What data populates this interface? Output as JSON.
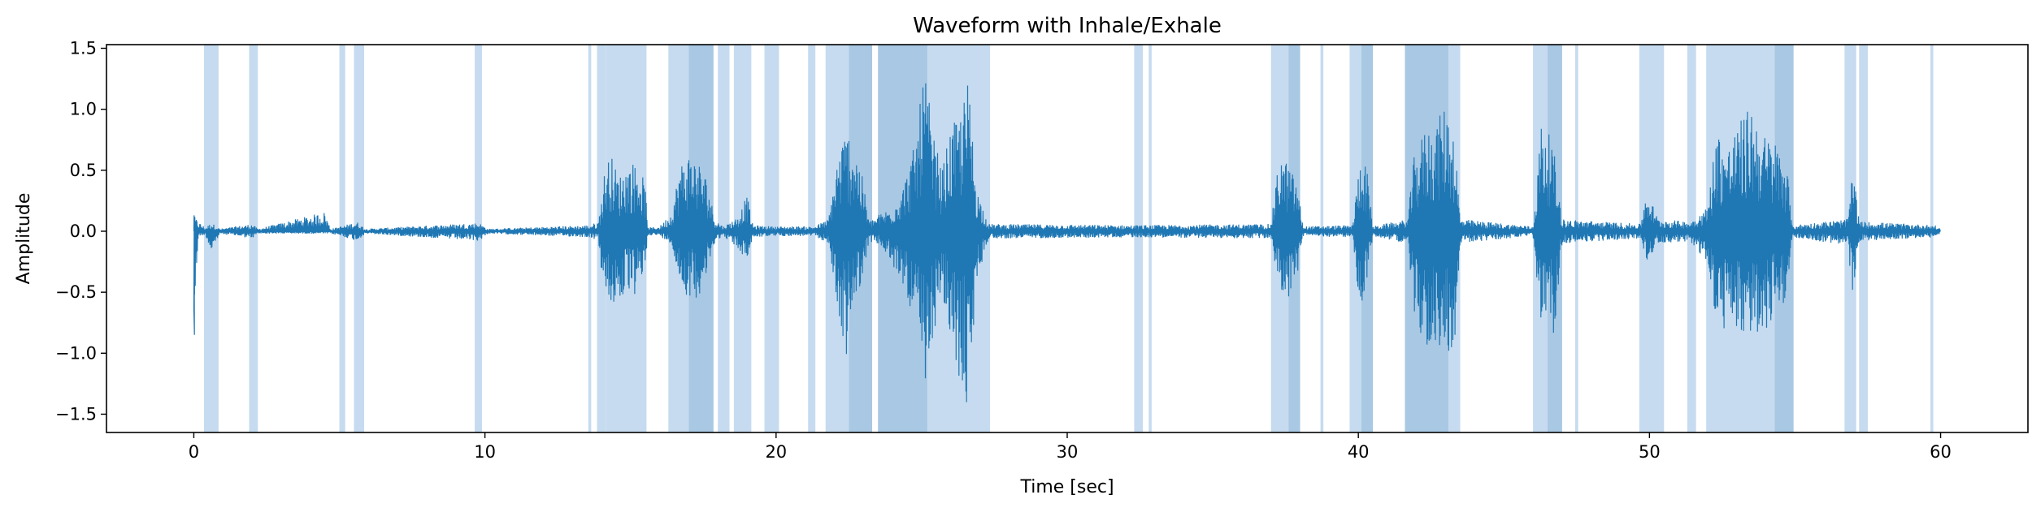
{
  "chart_data": {
    "type": "line",
    "title": "Waveform with Inhale/Exhale",
    "xlabel": "Time [sec]",
    "ylabel": "Amplitude",
    "xlim": [
      -3,
      63
    ],
    "ylim": [
      -1.65,
      1.53
    ],
    "x_ticks": [
      0,
      10,
      20,
      30,
      40,
      50,
      60
    ],
    "y_ticks": [
      -1.5,
      -1.0,
      -0.5,
      0.0,
      0.5,
      1.0,
      1.5
    ],
    "x_tick_labels": [
      "0",
      "10",
      "20",
      "30",
      "40",
      "50",
      "60"
    ],
    "y_tick_labels": [
      "−1.5",
      "−1.0",
      "−0.5",
      "0.0",
      "0.5",
      "1.0",
      "1.5"
    ],
    "grid": false,
    "colors": {
      "waveform": "#1f77b4",
      "span_light": "#c6dbef",
      "span_dark": "#a9c8e3"
    },
    "series": [
      {
        "envelope_points": [
          [
            0.0,
            0.13,
            -0.85
          ],
          [
            0.15,
            0.08,
            -0.04
          ],
          [
            0.4,
            0.03,
            -0.03
          ],
          [
            0.6,
            0.07,
            -0.18
          ],
          [
            0.9,
            0.02,
            -0.02
          ],
          [
            2.0,
            0.06,
            -0.06
          ],
          [
            2.2,
            0.02,
            -0.02
          ],
          [
            4.5,
            0.16,
            -0.02
          ],
          [
            4.7,
            0.02,
            -0.02
          ],
          [
            5.2,
            0.05,
            -0.05
          ],
          [
            5.6,
            0.08,
            -0.08
          ],
          [
            5.9,
            0.02,
            -0.02
          ],
          [
            9.8,
            0.07,
            -0.08
          ],
          [
            10.1,
            0.02,
            -0.02
          ],
          [
            13.6,
            0.05,
            -0.05
          ],
          [
            13.9,
            0.08,
            -0.08
          ],
          [
            14.1,
            0.48,
            -0.58
          ],
          [
            14.3,
            0.65,
            -0.62
          ],
          [
            14.6,
            0.45,
            -0.6
          ],
          [
            14.9,
            0.55,
            -0.5
          ],
          [
            15.2,
            0.58,
            -0.55
          ],
          [
            15.5,
            0.4,
            -0.3
          ],
          [
            15.6,
            0.03,
            -0.03
          ],
          [
            16.0,
            0.04,
            -0.04
          ],
          [
            16.4,
            0.15,
            -0.1
          ],
          [
            16.7,
            0.55,
            -0.45
          ],
          [
            17.0,
            0.65,
            -0.55
          ],
          [
            17.3,
            0.6,
            -0.55
          ],
          [
            17.6,
            0.45,
            -0.4
          ],
          [
            17.9,
            0.1,
            -0.08
          ],
          [
            18.2,
            0.04,
            -0.04
          ],
          [
            18.7,
            0.12,
            -0.15
          ],
          [
            19.0,
            0.3,
            -0.25
          ],
          [
            19.2,
            0.05,
            -0.05
          ],
          [
            19.9,
            0.04,
            -0.04
          ],
          [
            21.3,
            0.04,
            -0.04
          ],
          [
            21.8,
            0.1,
            -0.1
          ],
          [
            22.1,
            0.6,
            -0.65
          ],
          [
            22.4,
            0.85,
            -1.05
          ],
          [
            22.7,
            0.75,
            -0.6
          ],
          [
            23.0,
            0.4,
            -0.35
          ],
          [
            23.2,
            0.08,
            -0.08
          ],
          [
            23.6,
            0.15,
            -0.12
          ],
          [
            24.0,
            0.2,
            -0.3
          ],
          [
            24.4,
            0.4,
            -0.45
          ],
          [
            24.8,
            0.75,
            -0.8
          ],
          [
            25.1,
            1.35,
            -1.48
          ],
          [
            25.4,
            0.8,
            -0.85
          ],
          [
            25.7,
            0.5,
            -0.55
          ],
          [
            26.0,
            0.85,
            -0.95
          ],
          [
            26.3,
            0.95,
            -1.25
          ],
          [
            26.6,
            1.25,
            -1.5
          ],
          [
            26.9,
            0.35,
            -0.4
          ],
          [
            27.3,
            0.06,
            -0.06
          ],
          [
            32.4,
            0.05,
            -0.05
          ],
          [
            37.0,
            0.06,
            -0.06
          ],
          [
            37.3,
            0.65,
            -0.5
          ],
          [
            37.6,
            0.55,
            -0.55
          ],
          [
            37.9,
            0.4,
            -0.4
          ],
          [
            38.1,
            0.04,
            -0.04
          ],
          [
            39.8,
            0.05,
            -0.05
          ],
          [
            40.1,
            0.7,
            -0.75
          ],
          [
            40.3,
            0.5,
            -0.4
          ],
          [
            40.5,
            0.04,
            -0.04
          ],
          [
            41.7,
            0.1,
            -0.1
          ],
          [
            41.9,
            0.6,
            -0.7
          ],
          [
            42.3,
            0.85,
            -0.95
          ],
          [
            42.7,
            0.9,
            -1.0
          ],
          [
            43.0,
            1.05,
            -1.0
          ],
          [
            43.3,
            0.85,
            -0.95
          ],
          [
            43.5,
            0.1,
            -0.1
          ],
          [
            46.0,
            0.04,
            -0.04
          ],
          [
            46.3,
            0.95,
            -0.85
          ],
          [
            46.7,
            0.7,
            -0.9
          ],
          [
            47.0,
            0.1,
            -0.1
          ],
          [
            49.7,
            0.06,
            -0.06
          ],
          [
            49.9,
            0.35,
            -0.25
          ],
          [
            50.3,
            0.1,
            -0.1
          ],
          [
            51.4,
            0.08,
            -0.08
          ],
          [
            52.0,
            0.2,
            -0.3
          ],
          [
            52.3,
            0.85,
            -0.75
          ],
          [
            52.7,
            0.7,
            -0.85
          ],
          [
            53.1,
            0.9,
            -0.9
          ],
          [
            53.5,
            1.05,
            -0.85
          ],
          [
            53.9,
            0.8,
            -0.85
          ],
          [
            54.3,
            0.75,
            -0.7
          ],
          [
            54.7,
            0.6,
            -0.55
          ],
          [
            54.9,
            0.05,
            -0.05
          ],
          [
            56.8,
            0.1,
            -0.12
          ],
          [
            57.0,
            0.55,
            -0.6
          ],
          [
            57.2,
            0.08,
            -0.08
          ],
          [
            59.8,
            0.05,
            -0.05
          ],
          [
            60.0,
            0.02,
            -0.02
          ]
        ]
      }
    ],
    "spans": [
      [
        0.35,
        0.85,
        "light"
      ],
      [
        1.9,
        2.2,
        "light"
      ],
      [
        5.0,
        5.2,
        "light"
      ],
      [
        5.5,
        5.85,
        "light"
      ],
      [
        9.65,
        9.9,
        "light"
      ],
      [
        13.55,
        13.65,
        "light"
      ],
      [
        13.85,
        14.15,
        "light"
      ],
      [
        14.15,
        15.55,
        "light"
      ],
      [
        16.3,
        17.0,
        "light"
      ],
      [
        17.0,
        17.85,
        "dark"
      ],
      [
        18.0,
        18.4,
        "light"
      ],
      [
        18.55,
        19.15,
        "light"
      ],
      [
        19.6,
        20.1,
        "light"
      ],
      [
        21.1,
        21.35,
        "light"
      ],
      [
        21.7,
        22.5,
        "light"
      ],
      [
        22.5,
        23.3,
        "dark"
      ],
      [
        23.5,
        25.2,
        "dark"
      ],
      [
        25.2,
        27.35,
        "light"
      ],
      [
        32.3,
        32.6,
        "light"
      ],
      [
        32.8,
        32.9,
        "light"
      ],
      [
        37.0,
        37.6,
        "light"
      ],
      [
        37.6,
        38.0,
        "dark"
      ],
      [
        38.7,
        38.8,
        "light"
      ],
      [
        39.7,
        40.1,
        "light"
      ],
      [
        40.1,
        40.5,
        "dark"
      ],
      [
        41.6,
        43.1,
        "dark"
      ],
      [
        43.1,
        43.5,
        "light"
      ],
      [
        46.0,
        46.5,
        "light"
      ],
      [
        46.5,
        47.0,
        "dark"
      ],
      [
        47.45,
        47.55,
        "light"
      ],
      [
        49.65,
        50.5,
        "light"
      ],
      [
        51.3,
        51.6,
        "light"
      ],
      [
        51.95,
        54.3,
        "light"
      ],
      [
        54.3,
        54.95,
        "dark"
      ],
      [
        56.7,
        57.1,
        "light"
      ],
      [
        57.2,
        57.5,
        "light"
      ],
      [
        59.65,
        59.75,
        "light"
      ]
    ]
  }
}
